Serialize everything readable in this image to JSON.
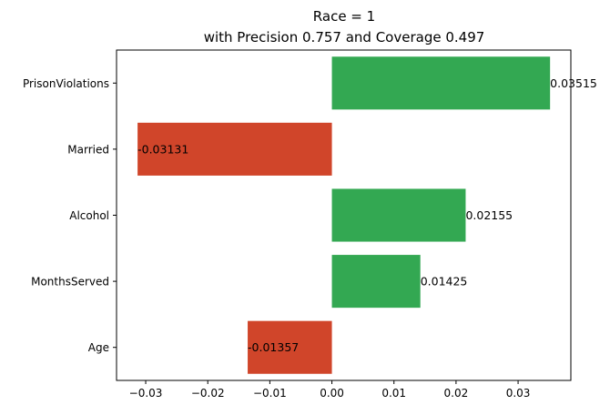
{
  "chart_data": {
    "type": "bar",
    "orientation": "horizontal",
    "title": [
      "Race = 1",
      "with Precision 0.757 and Coverage 0.497"
    ],
    "xlabel": "",
    "ylabel": "",
    "categories": [
      "PrisonViolations",
      "Married",
      "Alcohol",
      "MonthsServed",
      "Age"
    ],
    "values": [
      0.03515,
      -0.03131,
      0.02155,
      0.01425,
      -0.01357
    ],
    "value_labels": [
      "0.03515",
      "-0.03131",
      "0.02155",
      "0.01425",
      "-0.01357"
    ],
    "xlim": [
      -0.0347,
      0.0385
    ],
    "xticks": [
      -0.03,
      -0.02,
      -0.01,
      0.0,
      0.01,
      0.02,
      0.03
    ],
    "xtick_labels": [
      "−0.03",
      "−0.02",
      "−0.01",
      "0.00",
      "0.01",
      "0.02",
      "0.03"
    ],
    "colors": {
      "positive": "#33a852",
      "negative": "#d0452a"
    },
    "grid": false,
    "legend": "none"
  }
}
